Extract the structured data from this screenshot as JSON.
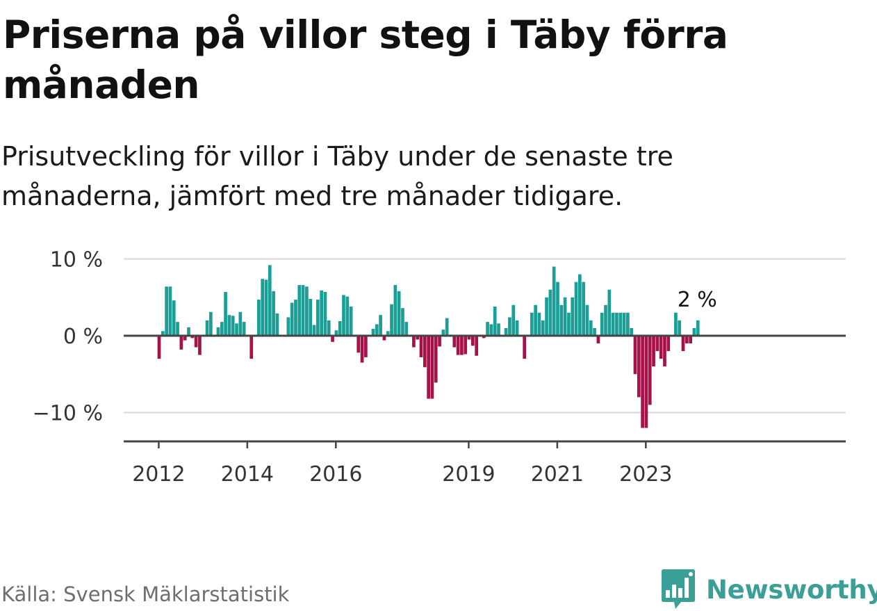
{
  "title": "Priserna på villor steg i Täby förra månaden",
  "subtitle": "Prisutveckling för villor i Täby under de senaste tre månaderna, jämfört med tre månader tidigare.",
  "source": "Källa: Svensk Mäklarstatistik",
  "brand": "Newsworthy",
  "colors": {
    "positive": "#1a9e96",
    "negative": "#a6114a",
    "brand": "#3a9f96",
    "grid": "#dddddd",
    "axis": "#444444"
  },
  "chart_data": {
    "type": "bar",
    "title": "Priserna på villor steg i Täby förra månaden",
    "xlabel": "",
    "ylabel": "",
    "ylim": [
      -14,
      10
    ],
    "yticks": [
      10,
      0,
      -10
    ],
    "ytick_labels": [
      "10 %",
      "0 %",
      "−10 %"
    ],
    "start": "2012-01",
    "xtick_labels": [
      {
        "label": "2012",
        "index": 0
      },
      {
        "label": "2014",
        "index": 24
      },
      {
        "label": "2016",
        "index": 48
      },
      {
        "label": "2019",
        "index": 84
      },
      {
        "label": "2021",
        "index": 108
      },
      {
        "label": "2023",
        "index": 132
      }
    ],
    "values": [
      -3,
      0.6,
      6.4,
      6.4,
      4.6,
      1.8,
      -1.8,
      -0.6,
      1.1,
      -0.3,
      -1.5,
      -2.5,
      0,
      2,
      3.1,
      0,
      1.1,
      1.8,
      5.7,
      2.7,
      2.6,
      1.6,
      3.1,
      1.8,
      0,
      -3,
      0,
      4.7,
      7.4,
      7.3,
      9.2,
      5.8,
      2.9,
      0,
      0,
      2.4,
      4.3,
      4.7,
      6.6,
      6.6,
      6.4,
      4.8,
      1.4,
      4.7,
      5.9,
      5.7,
      2,
      -0.8,
      0.7,
      1.9,
      5.3,
      5.1,
      3.8,
      0,
      -2.2,
      -3.5,
      -2.8,
      0,
      0.9,
      1.5,
      2.7,
      -0.6,
      0.6,
      4.1,
      6.6,
      5.8,
      3.6,
      1.8,
      0,
      -1.5,
      -0.5,
      -2.8,
      -4.1,
      -8.2,
      -8.2,
      -6.1,
      -1.4,
      0.8,
      2.3,
      0,
      -1.5,
      -2.5,
      -2.5,
      -2.4,
      -0.5,
      -1.3,
      -2.6,
      0,
      -0.3,
      1.8,
      1.5,
      3.8,
      1.6,
      0,
      1,
      2.4,
      4,
      2,
      0,
      -3,
      0,
      3,
      4,
      3,
      2,
      5,
      6,
      9,
      7,
      4,
      5,
      3,
      5,
      7,
      8,
      7,
      4,
      2,
      1,
      -1,
      3,
      4,
      6,
      3,
      3,
      3,
      3,
      3,
      1,
      -5,
      -8,
      -12,
      -12,
      -9,
      -4,
      -2,
      -3,
      -4,
      -2,
      0,
      3,
      2,
      -2,
      -1,
      -1,
      1,
      2
    ],
    "annotation": {
      "label": "2 %",
      "index": 146
    }
  }
}
